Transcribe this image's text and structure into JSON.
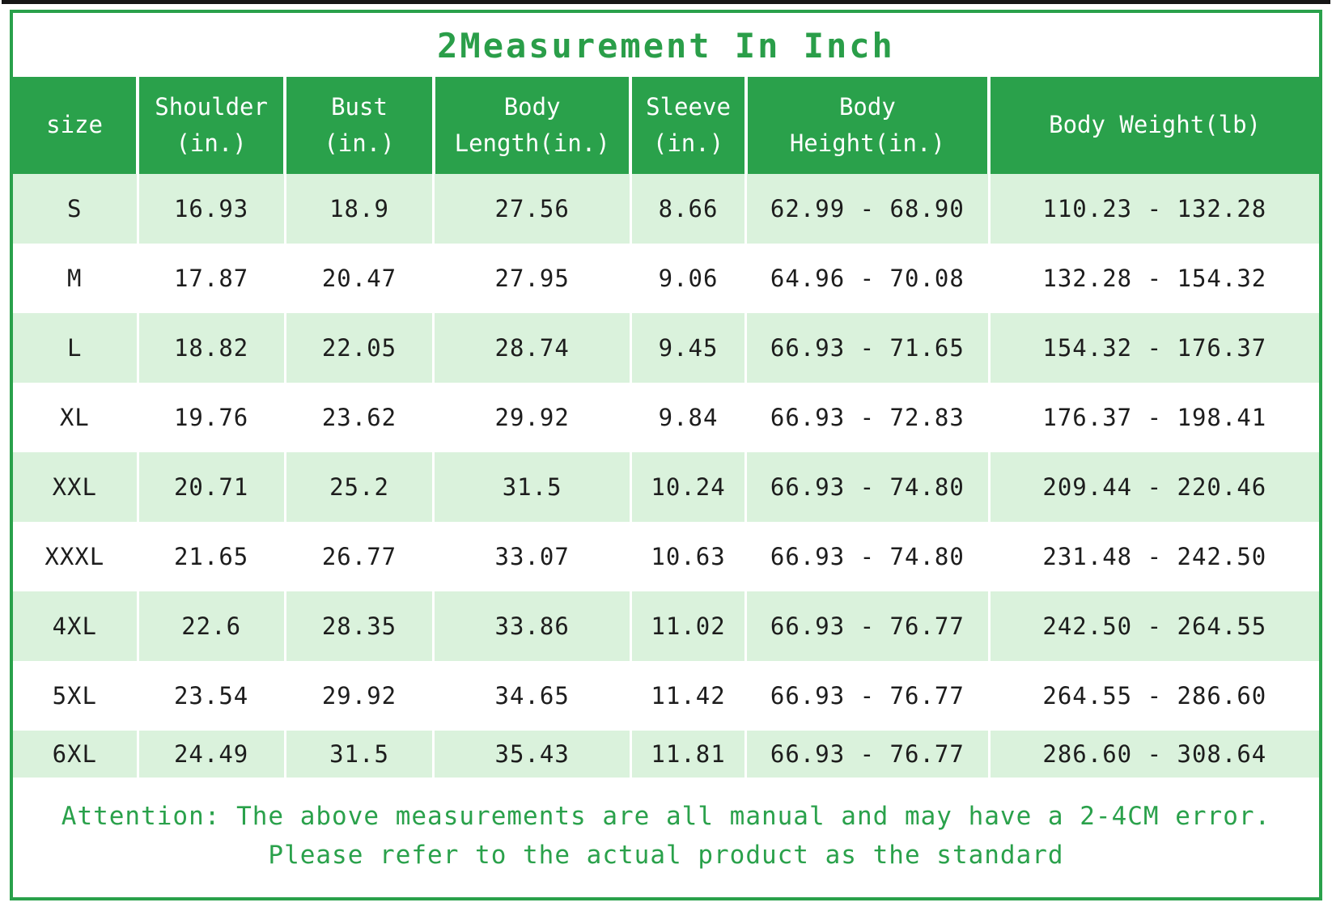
{
  "title": "2Measurement In Inch",
  "table": {
    "headers": [
      "size",
      "Shoulder\n(in.)",
      "Bust\n(in.)",
      "Body\nLength(in.)",
      "Sleeve\n(in.)",
      "Body\nHeight(in.)",
      "Body Weight(lb)"
    ],
    "rows": [
      [
        "S",
        "16.93",
        "18.9",
        "27.56",
        "8.66",
        "62.99 - 68.90",
        "110.23 - 132.28"
      ],
      [
        "M",
        "17.87",
        "20.47",
        "27.95",
        "9.06",
        "64.96 - 70.08",
        "132.28 - 154.32"
      ],
      [
        "L",
        "18.82",
        "22.05",
        "28.74",
        "9.45",
        "66.93 - 71.65",
        "154.32 - 176.37"
      ],
      [
        "XL",
        "19.76",
        "23.62",
        "29.92",
        "9.84",
        "66.93 - 72.83",
        "176.37 - 198.41"
      ],
      [
        "XXL",
        "20.71",
        "25.2",
        "31.5",
        "10.24",
        "66.93 - 74.80",
        "209.44 - 220.46"
      ],
      [
        "XXXL",
        "21.65",
        "26.77",
        "33.07",
        "10.63",
        "66.93 - 74.80",
        "231.48 - 242.50"
      ],
      [
        "4XL",
        "22.6",
        "28.35",
        "33.86",
        "11.02",
        "66.93 - 76.77",
        "242.50 - 264.55"
      ],
      [
        "5XL",
        "23.54",
        "29.92",
        "34.65",
        "11.42",
        "66.93 - 76.77",
        "264.55 - 286.60"
      ],
      [
        "6XL",
        "24.49",
        "31.5",
        "35.43",
        "11.81",
        "66.93 - 76.77",
        "286.60 - 308.64"
      ]
    ]
  },
  "footer": {
    "line1": "Attention: The above measurements are all manual and may have a 2-4CM error.",
    "line2": "Please refer to the actual product as the standard"
  },
  "colors": {
    "green": "#2aa14b",
    "light_green_row": "#daf2dc",
    "title_green": "#2a9e49",
    "body_text": "#1d1d1d"
  },
  "chart_data": {
    "type": "table",
    "title": "2Measurement In Inch",
    "columns": [
      "size",
      "Shoulder (in.)",
      "Bust (in.)",
      "Body Length(in.)",
      "Sleeve (in.)",
      "Body Height(in.)",
      "Body Weight(lb)"
    ],
    "rows": [
      [
        "S",
        16.93,
        18.9,
        27.56,
        8.66,
        "62.99 - 68.90",
        "110.23 - 132.28"
      ],
      [
        "M",
        17.87,
        20.47,
        27.95,
        9.06,
        "64.96 - 70.08",
        "132.28 - 154.32"
      ],
      [
        "L",
        18.82,
        22.05,
        28.74,
        9.45,
        "66.93 - 71.65",
        "154.32 - 176.37"
      ],
      [
        "XL",
        19.76,
        23.62,
        29.92,
        9.84,
        "66.93 - 72.83",
        "176.37 - 198.41"
      ],
      [
        "XXL",
        20.71,
        25.2,
        31.5,
        10.24,
        "66.93 - 74.80",
        "209.44 - 220.46"
      ],
      [
        "XXXL",
        21.65,
        26.77,
        33.07,
        10.63,
        "66.93 - 74.80",
        "231.48 - 242.50"
      ],
      [
        "4XL",
        22.6,
        28.35,
        33.86,
        11.02,
        "66.93 - 76.77",
        "242.50 - 264.55"
      ],
      [
        "5XL",
        23.54,
        29.92,
        34.65,
        11.42,
        "66.93 - 76.77",
        "264.55 - 286.60"
      ],
      [
        "6XL",
        24.49,
        31.5,
        35.43,
        11.81,
        "66.93 - 76.77",
        "286.60 - 308.64"
      ]
    ],
    "notes": [
      "Attention: The above measurements are all manual and may have a 2-4CM error.",
      "Please refer to the actual product as the standard"
    ]
  }
}
